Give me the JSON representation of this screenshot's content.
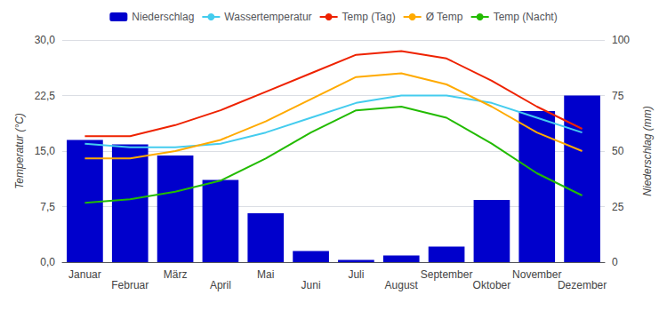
{
  "chart_data": {
    "type": "bar",
    "categories": [
      "Januar",
      "Februar",
      "März",
      "April",
      "Mai",
      "Juni",
      "Juli",
      "August",
      "September",
      "Oktober",
      "November",
      "Dezember"
    ],
    "series": [
      {
        "name": "Niederschlag",
        "type": "bar",
        "axis": "y2",
        "color": "#0000CC",
        "values": [
          55,
          53,
          48,
          37,
          22,
          5,
          1,
          3,
          7,
          28,
          68,
          75
        ]
      },
      {
        "name": "Wassertemperatur",
        "type": "line",
        "color": "#44CCEE",
        "values": [
          16.0,
          15.5,
          15.5,
          16.0,
          17.5,
          19.5,
          21.5,
          22.5,
          22.5,
          21.5,
          19.5,
          17.5
        ]
      },
      {
        "name": "Temp (Tag)",
        "type": "line",
        "color": "#EE2200",
        "values": [
          17.0,
          17.0,
          18.5,
          20.5,
          23.0,
          25.5,
          28.0,
          28.5,
          27.5,
          24.5,
          21.0,
          18.0
        ]
      },
      {
        "name": "Ø Temp",
        "type": "line",
        "color": "#FFAA00",
        "values": [
          14.0,
          14.0,
          15.0,
          16.5,
          19.0,
          22.0,
          25.0,
          25.5,
          24.0,
          21.0,
          17.5,
          15.0
        ]
      },
      {
        "name": "Temp (Nacht)",
        "type": "line",
        "color": "#22BB00",
        "values": [
          8.0,
          8.5,
          9.5,
          11.0,
          14.0,
          17.5,
          20.5,
          21.0,
          19.5,
          16.0,
          12.0,
          9.0
        ]
      }
    ],
    "ylabel": "Temperatur (°C)",
    "y2label": "Niederschlag (mm)",
    "ylim": [
      0.0,
      30.0
    ],
    "yticks": [
      {
        "value": 0.0,
        "label": "0,0"
      },
      {
        "value": 7.5,
        "label": "7,5"
      },
      {
        "value": 15.0,
        "label": "15,0"
      },
      {
        "value": 22.5,
        "label": "22,5"
      },
      {
        "value": 30.0,
        "label": "30,0"
      }
    ],
    "y2lim": [
      0,
      100
    ],
    "y2ticks": [
      0,
      25,
      50,
      75,
      100
    ],
    "grid": true,
    "legend": "top"
  }
}
